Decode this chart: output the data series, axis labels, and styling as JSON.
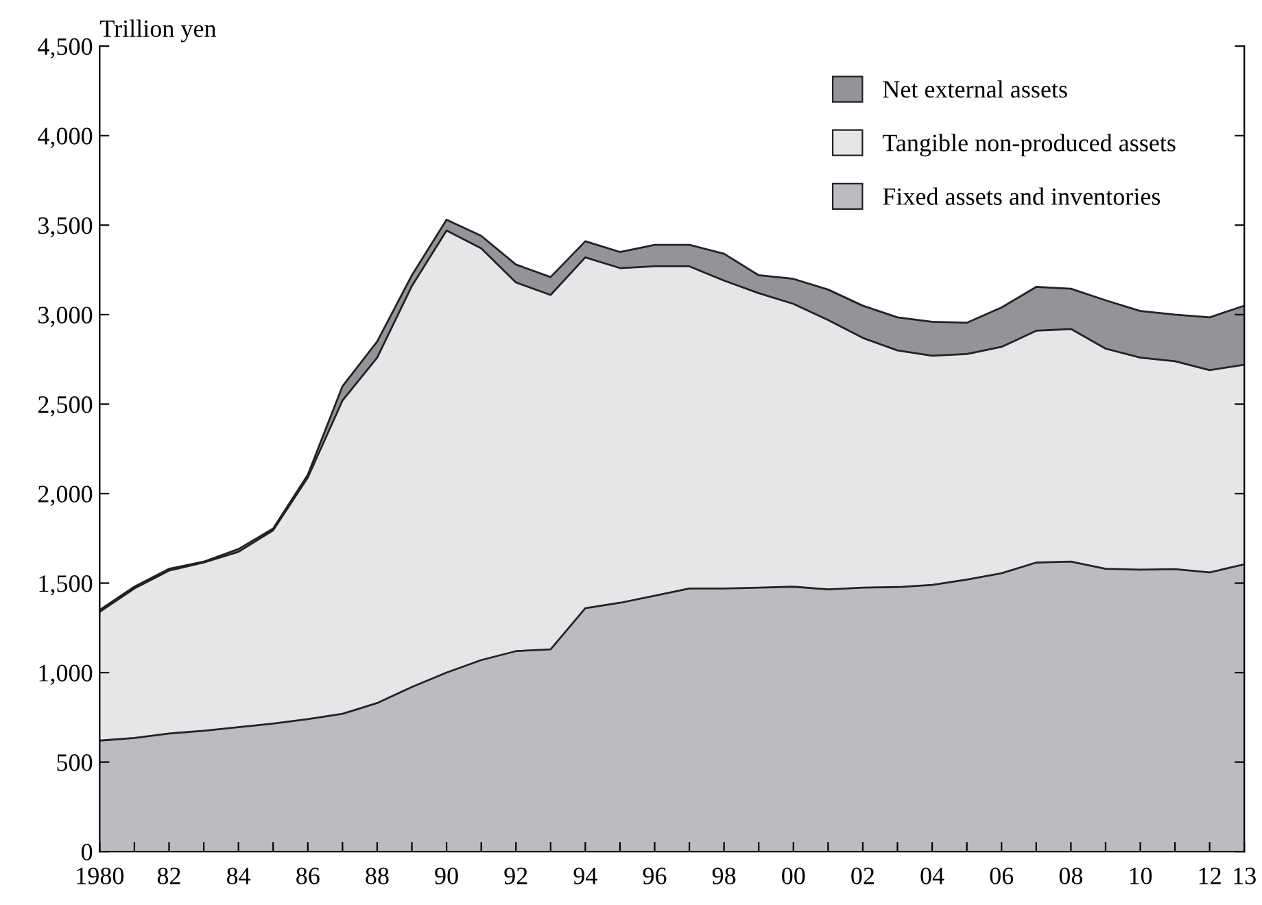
{
  "chart_data": {
    "type": "area",
    "stacked": true,
    "ylabel": "Trillion yen",
    "x": [
      1980,
      1981,
      1982,
      1983,
      1984,
      1985,
      1986,
      1987,
      1988,
      1989,
      1990,
      1991,
      1992,
      1993,
      1994,
      1995,
      1996,
      1997,
      1998,
      1999,
      2000,
      2001,
      2002,
      2003,
      2004,
      2005,
      2006,
      2007,
      2008,
      2009,
      2010,
      2011,
      2012,
      2013
    ],
    "series": [
      {
        "name": "Fixed assets and inventories",
        "color": "#bbbcc0",
        "values": [
          620,
          635,
          660,
          675,
          695,
          715,
          740,
          770,
          830,
          920,
          1000,
          1070,
          1120,
          1130,
          1360,
          1390,
          1430,
          1470,
          1470,
          1475,
          1480,
          1465,
          1475,
          1478,
          1490,
          1520,
          1555,
          1615,
          1620,
          1580,
          1575,
          1578,
          1560,
          1605
        ]
      },
      {
        "name": "Tangible non-produced assets",
        "color": "#e5e6e8",
        "values": [
          720,
          835,
          910,
          940,
          980,
          1080,
          1350,
          1750,
          1930,
          2240,
          2470,
          2300,
          2060,
          1980,
          1960,
          1870,
          1840,
          1800,
          1720,
          1645,
          1580,
          1505,
          1395,
          1322,
          1280,
          1260,
          1265,
          1295,
          1300,
          1230,
          1185,
          1162,
          1130,
          1115
        ]
      },
      {
        "name": "Net external assets",
        "color": "#939497",
        "values": [
          10,
          10,
          10,
          5,
          15,
          10,
          15,
          80,
          90,
          60,
          60,
          70,
          100,
          100,
          90,
          90,
          120,
          120,
          150,
          100,
          140,
          170,
          180,
          185,
          190,
          175,
          220,
          245,
          225,
          270,
          260,
          260,
          295,
          330
        ]
      }
    ],
    "xlim": [
      1980,
      2013
    ],
    "xticks": [
      {
        "value": 1980,
        "label": "1980"
      },
      {
        "value": 1981,
        "label": null
      },
      {
        "value": 1982,
        "label": "82"
      },
      {
        "value": 1983,
        "label": null
      },
      {
        "value": 1984,
        "label": "84"
      },
      {
        "value": 1985,
        "label": null
      },
      {
        "value": 1986,
        "label": "86"
      },
      {
        "value": 1987,
        "label": null
      },
      {
        "value": 1988,
        "label": "88"
      },
      {
        "value": 1989,
        "label": null
      },
      {
        "value": 1990,
        "label": "90"
      },
      {
        "value": 1991,
        "label": null
      },
      {
        "value": 1992,
        "label": "92"
      },
      {
        "value": 1993,
        "label": null
      },
      {
        "value": 1994,
        "label": "94"
      },
      {
        "value": 1995,
        "label": null
      },
      {
        "value": 1996,
        "label": "96"
      },
      {
        "value": 1997,
        "label": null
      },
      {
        "value": 1998,
        "label": "98"
      },
      {
        "value": 1999,
        "label": null
      },
      {
        "value": 2000,
        "label": "00"
      },
      {
        "value": 2001,
        "label": null
      },
      {
        "value": 2002,
        "label": "02"
      },
      {
        "value": 2003,
        "label": null
      },
      {
        "value": 2004,
        "label": "04"
      },
      {
        "value": 2005,
        "label": null
      },
      {
        "value": 2006,
        "label": "06"
      },
      {
        "value": 2007,
        "label": null
      },
      {
        "value": 2008,
        "label": "08"
      },
      {
        "value": 2009,
        "label": null
      },
      {
        "value": 2010,
        "label": "10"
      },
      {
        "value": 2011,
        "label": null
      },
      {
        "value": 2012,
        "label": "12"
      },
      {
        "value": 2013,
        "label": "13"
      }
    ],
    "ylim": [
      0,
      4500
    ],
    "yticks": [
      0,
      500,
      {
        "value": 1000,
        "label": "1,000"
      },
      {
        "value": 1500,
        "label": "1,500"
      },
      {
        "value": 2000,
        "label": "2,000"
      },
      {
        "value": 2500,
        "label": "2,500"
      },
      {
        "value": 3000,
        "label": "3,000"
      },
      {
        "value": 3500,
        "label": "3,500"
      },
      {
        "value": 4000,
        "label": "4,000"
      },
      {
        "value": 4500,
        "label": "4,500"
      }
    ],
    "grid": false,
    "legend": "top right"
  }
}
